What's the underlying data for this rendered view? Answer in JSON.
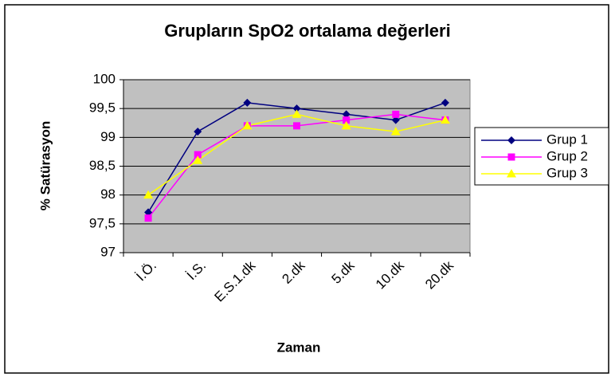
{
  "chart_data": {
    "type": "line",
    "title": "Grupların SpO2 ortalama değerleri",
    "x_label": "Zaman",
    "y_label": "% Satürasyon",
    "categories": [
      "İ.Ö.",
      "İ.S.",
      "E.S.1.dk",
      "2.dk",
      "5.dk",
      "10.dk",
      "20.dk"
    ],
    "series": [
      {
        "name": "Grup 1",
        "color": "#000080",
        "marker": "diamond",
        "values": [
          97.7,
          99.1,
          99.6,
          99.5,
          99.4,
          99.3,
          99.6
        ]
      },
      {
        "name": "Grup 2",
        "color": "#ff00ff",
        "marker": "square",
        "values": [
          97.6,
          98.7,
          99.2,
          99.2,
          99.3,
          99.4,
          99.3
        ]
      },
      {
        "name": "Grup 3",
        "color": "#ffff00",
        "marker": "triangle",
        "values": [
          98.0,
          98.6,
          99.2,
          99.4,
          99.2,
          99.1,
          99.3
        ]
      }
    ],
    "ylim": [
      97,
      100
    ],
    "yticks": [
      97,
      {
        "value": 97.5,
        "label": "97,5"
      },
      98,
      {
        "value": 98.5,
        "label": "98,5"
      },
      99,
      {
        "value": 99.5,
        "label": "99,5"
      },
      100
    ],
    "grid": true,
    "legend": "right"
  }
}
